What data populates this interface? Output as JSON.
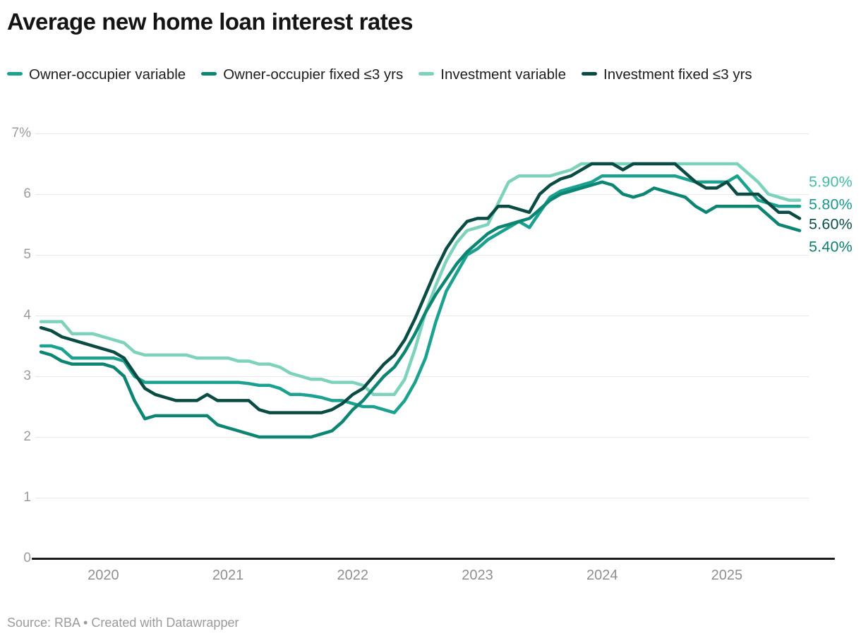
{
  "header": {
    "title": "Average new home loan interest rates"
  },
  "legend": {
    "items": [
      {
        "label": "Owner-occupier variable",
        "color": "#1aa18f"
      },
      {
        "label": "Owner-occupier fixed ≤3 yrs",
        "color": "#0c8573"
      },
      {
        "label": "Investment variable",
        "color": "#7dd2bc"
      },
      {
        "label": "Investment fixed ≤3 yrs",
        "color": "#0a4c43"
      }
    ]
  },
  "footer": {
    "source": "Source: RBA • Created with Datawrapper"
  },
  "chart_data": {
    "type": "line",
    "title": "Average new home loan interest rates",
    "x_start": "2019-07",
    "x_end": "2025-08",
    "frequency": "monthly",
    "ylim": [
      0,
      7
    ],
    "grid": "horizontal",
    "y_ticks": [
      {
        "label": "7%",
        "value": 7
      },
      {
        "label": "6",
        "value": 6
      },
      {
        "label": "5",
        "value": 5
      },
      {
        "label": "4",
        "value": 4
      },
      {
        "label": "3",
        "value": 3
      },
      {
        "label": "2",
        "value": 2
      },
      {
        "label": "1",
        "value": 1
      },
      {
        "label": "0",
        "value": 0
      }
    ],
    "x_ticks": [
      2020,
      2021,
      2022,
      2023,
      2024,
      2025
    ],
    "series": [
      {
        "name": "Investment variable",
        "color": "#7dd2bc",
        "end_label": "5.90%",
        "end_label_color": "#45bca4",
        "end_label_y_value": 6.2,
        "values": [
          3.9,
          3.9,
          3.9,
          3.7,
          3.7,
          3.7,
          3.65,
          3.6,
          3.55,
          3.4,
          3.35,
          3.35,
          3.35,
          3.35,
          3.35,
          3.3,
          3.3,
          3.3,
          3.3,
          3.25,
          3.25,
          3.2,
          3.2,
          3.15,
          3.05,
          3.0,
          2.95,
          2.95,
          2.9,
          2.9,
          2.9,
          2.85,
          2.7,
          2.7,
          2.7,
          2.95,
          3.45,
          4.05,
          4.5,
          4.9,
          5.2,
          5.4,
          5.45,
          5.5,
          5.85,
          6.2,
          6.3,
          6.3,
          6.3,
          6.3,
          6.35,
          6.4,
          6.5,
          6.5,
          6.5,
          6.5,
          6.5,
          6.5,
          6.5,
          6.5,
          6.5,
          6.5,
          6.5,
          6.5,
          6.5,
          6.5,
          6.5,
          6.5,
          6.35,
          6.2,
          6.0,
          5.95,
          5.9,
          5.9
        ]
      },
      {
        "name": "Owner-occupier variable",
        "color": "#1aa18f",
        "end_label": "5.80%",
        "end_label_color": "#18998b",
        "end_label_y_value": 5.83,
        "values": [
          3.5,
          3.5,
          3.45,
          3.3,
          3.3,
          3.3,
          3.3,
          3.3,
          3.25,
          3.0,
          2.9,
          2.9,
          2.9,
          2.9,
          2.9,
          2.9,
          2.9,
          2.9,
          2.9,
          2.9,
          2.88,
          2.85,
          2.85,
          2.8,
          2.7,
          2.7,
          2.68,
          2.65,
          2.6,
          2.6,
          2.55,
          2.5,
          2.5,
          2.45,
          2.4,
          2.6,
          2.9,
          3.3,
          3.9,
          4.4,
          4.7,
          5.0,
          5.1,
          5.25,
          5.35,
          5.45,
          5.55,
          5.45,
          5.7,
          5.95,
          6.05,
          6.1,
          6.15,
          6.2,
          6.3,
          6.3,
          6.3,
          6.3,
          6.3,
          6.3,
          6.3,
          6.3,
          6.25,
          6.2,
          6.2,
          6.2,
          6.2,
          6.3,
          6.1,
          5.9,
          5.85,
          5.8,
          5.8,
          5.8
        ]
      },
      {
        "name": "Owner-occupier fixed ≤3 yrs",
        "color": "#0c8573",
        "end_label": "5.40%",
        "end_label_color": "#0d8070",
        "end_label_y_value": 5.13,
        "values": [
          3.4,
          3.35,
          3.25,
          3.2,
          3.2,
          3.2,
          3.2,
          3.15,
          3.0,
          2.6,
          2.3,
          2.35,
          2.35,
          2.35,
          2.35,
          2.35,
          2.35,
          2.2,
          2.15,
          2.1,
          2.05,
          2.0,
          2.0,
          2.0,
          2.0,
          2.0,
          2.0,
          2.05,
          2.1,
          2.25,
          2.45,
          2.6,
          2.8,
          3.0,
          3.15,
          3.4,
          3.7,
          4.05,
          4.35,
          4.6,
          4.85,
          5.05,
          5.2,
          5.35,
          5.45,
          5.5,
          5.55,
          5.6,
          5.75,
          5.9,
          6.0,
          6.05,
          6.1,
          6.15,
          6.2,
          6.15,
          6.0,
          5.95,
          6.0,
          6.1,
          6.05,
          6.0,
          5.95,
          5.8,
          5.7,
          5.8,
          5.8,
          5.8,
          5.8,
          5.8,
          5.65,
          5.5,
          5.45,
          5.4
        ]
      },
      {
        "name": "Investment fixed ≤3 yrs",
        "color": "#0a4c43",
        "end_label": "5.60%",
        "end_label_color": "#0c4f47",
        "end_label_y_value": 5.5,
        "values": [
          3.8,
          3.75,
          3.65,
          3.6,
          3.55,
          3.5,
          3.45,
          3.4,
          3.3,
          3.05,
          2.8,
          2.7,
          2.65,
          2.6,
          2.6,
          2.6,
          2.7,
          2.6,
          2.6,
          2.6,
          2.6,
          2.45,
          2.4,
          2.4,
          2.4,
          2.4,
          2.4,
          2.4,
          2.45,
          2.55,
          2.7,
          2.8,
          3.0,
          3.2,
          3.35,
          3.6,
          3.95,
          4.35,
          4.75,
          5.1,
          5.35,
          5.55,
          5.6,
          5.6,
          5.8,
          5.8,
          5.75,
          5.7,
          6.0,
          6.15,
          6.25,
          6.3,
          6.4,
          6.5,
          6.5,
          6.5,
          6.4,
          6.5,
          6.5,
          6.5,
          6.5,
          6.5,
          6.35,
          6.2,
          6.1,
          6.1,
          6.2,
          6.0,
          6.0,
          6.0,
          5.85,
          5.7,
          5.7,
          5.6
        ]
      }
    ]
  }
}
